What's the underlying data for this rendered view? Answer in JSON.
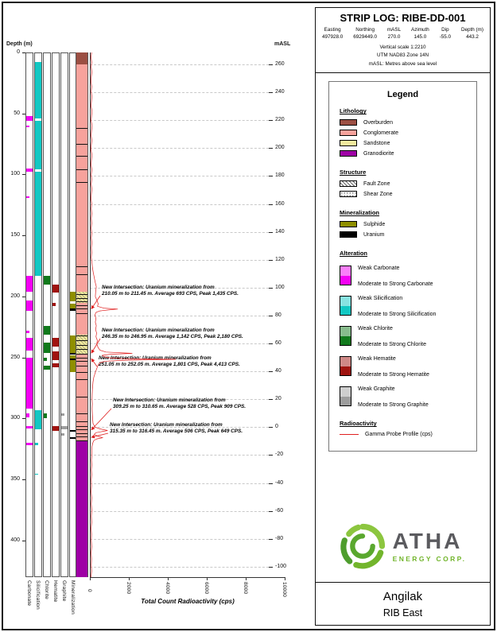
{
  "header": {
    "title": "STRIP LOG: RIBE-DD-001",
    "fields": [
      {
        "label": "Easting",
        "value": "497928.0"
      },
      {
        "label": "Northing",
        "value": "6929449.0"
      },
      {
        "label": "mASL",
        "value": "270.0"
      },
      {
        "label": "Azimuth",
        "value": "145.0"
      },
      {
        "label": "Dip",
        "value": "-55.0"
      },
      {
        "label": "Depth (m)",
        "value": "443.2"
      }
    ],
    "notes": [
      "Vertical scale 1:2210",
      "UTM NAD83 Zone 14N",
      "mASL: Metres above sea level"
    ]
  },
  "legend": {
    "title": "Legend",
    "sections": {
      "lithology": {
        "title": "Lithology",
        "items": [
          {
            "label": "Overburden",
            "color": "#9b4f43"
          },
          {
            "label": "Conglomerate",
            "color": "#f7a29c"
          },
          {
            "label": "Sandstone",
            "color": "#f3eb9e"
          },
          {
            "label": "Granodiorite",
            "color": "#9e00a5"
          }
        ]
      },
      "structure": {
        "title": "Structure",
        "items": [
          {
            "label": "Fault Zone",
            "pattern": "fault"
          },
          {
            "label": "Shear Zone",
            "pattern": "shear"
          }
        ]
      },
      "mineralization": {
        "title": "Mineralization",
        "items": [
          {
            "label": "Sulphide",
            "color": "#8f8f00"
          },
          {
            "label": "Uranium",
            "color": "#000000"
          }
        ]
      },
      "alteration": {
        "title": "Alteration",
        "pairs": [
          {
            "key": "carbonate",
            "weak_label": "Weak Carbonate",
            "strong_label": "Moderate to Strong Carbonate",
            "color": "#f400f4"
          },
          {
            "key": "silicification",
            "weak_label": "Weak Silicification",
            "strong_label": "Moderate to Strong Silicification",
            "color": "#12c8c3"
          },
          {
            "key": "chlorite",
            "weak_label": "Weak Chlorite",
            "strong_label": "Moderate to Strong Chlorite",
            "color": "#117a1c"
          },
          {
            "key": "hematite",
            "weak_label": "Weak Hematite",
            "strong_label": "Moderate to Strong Hematite",
            "color": "#a01410"
          },
          {
            "key": "graphite",
            "weak_label": "Weak Graphite",
            "strong_label": "Moderate to Strong Graphite",
            "color": "#9d9d9d"
          }
        ]
      },
      "radioactivity": {
        "title": "Radioactivity",
        "item_label": "Gamma Probe Profile (cps)",
        "color": "#e02020"
      }
    }
  },
  "logo": {
    "name": "ATHA",
    "subtitle": "ENERGY CORP."
  },
  "footer": {
    "project": "Angilak",
    "area": "RIB East"
  },
  "chart_data": {
    "type": "strip-log",
    "depth_axis": {
      "label": "Depth (m)",
      "min": 0,
      "max": 430,
      "ticks": [
        0,
        50,
        100,
        150,
        200,
        250,
        300,
        350,
        400
      ]
    },
    "masl_axis": {
      "label": "mASL",
      "collar_masl": 270.0,
      "ticks": [
        260,
        240,
        220,
        200,
        180,
        160,
        140,
        120,
        100,
        80,
        60,
        40,
        20,
        0,
        -20,
        -40,
        -60,
        -80,
        -100
      ]
    },
    "radioactivity_axis": {
      "label": "Total Count Radioactivity (cps)",
      "ticks": [
        0,
        2000,
        4000,
        6000,
        8000,
        10000
      ],
      "max": 10000
    },
    "track_labels": [
      "Carbonate",
      "Silicification",
      "Chlorite",
      "Hematite",
      "Graphite",
      "Mineralization"
    ],
    "alteration_tracks": {
      "carbonate": [
        {
          "from": 52,
          "to": 56,
          "intensity": "strong"
        },
        {
          "from": 60,
          "to": 61,
          "intensity": "weak"
        },
        {
          "from": 95,
          "to": 98,
          "intensity": "strong"
        },
        {
          "from": 118,
          "to": 119,
          "intensity": "weak"
        },
        {
          "from": 183,
          "to": 196,
          "intensity": "strong"
        },
        {
          "from": 203,
          "to": 212,
          "intensity": "strong"
        },
        {
          "from": 228,
          "to": 230,
          "intensity": "weak"
        },
        {
          "from": 234,
          "to": 244,
          "intensity": "strong"
        },
        {
          "from": 250,
          "to": 292,
          "intensity": "strong"
        },
        {
          "from": 296,
          "to": 299,
          "intensity": "weak"
        },
        {
          "from": 306,
          "to": 308,
          "intensity": "strong"
        },
        {
          "from": 320,
          "to": 322,
          "intensity": "strong"
        }
      ],
      "silicification": [
        {
          "from": 8,
          "to": 54,
          "intensity": "strong"
        },
        {
          "from": 56,
          "to": 96,
          "intensity": "strong"
        },
        {
          "from": 98,
          "to": 183,
          "intensity": "strong"
        },
        {
          "from": 293,
          "to": 309,
          "intensity": "strong"
        },
        {
          "from": 320,
          "to": 322,
          "intensity": "weak"
        },
        {
          "from": 345,
          "to": 346,
          "intensity": "weak"
        }
      ],
      "chlorite": [
        {
          "from": 183,
          "to": 190,
          "intensity": "strong"
        },
        {
          "from": 224,
          "to": 231,
          "intensity": "strong"
        },
        {
          "from": 238,
          "to": 246,
          "intensity": "strong"
        },
        {
          "from": 250,
          "to": 253,
          "intensity": "weak"
        },
        {
          "from": 257,
          "to": 260,
          "intensity": "strong"
        },
        {
          "from": 296,
          "to": 300,
          "intensity": "weak"
        }
      ],
      "hematite": [
        {
          "from": 190,
          "to": 197,
          "intensity": "strong"
        },
        {
          "from": 205,
          "to": 208,
          "intensity": "weak"
        },
        {
          "from": 234,
          "to": 241,
          "intensity": "strong"
        },
        {
          "from": 245,
          "to": 252,
          "intensity": "strong"
        },
        {
          "from": 255,
          "to": 258,
          "intensity": "strong"
        },
        {
          "from": 306,
          "to": 310,
          "intensity": "strong"
        }
      ],
      "graphite": [
        {
          "from": 296,
          "to": 298,
          "intensity": "weak"
        },
        {
          "from": 306,
          "to": 309,
          "intensity": "strong"
        },
        {
          "from": 312,
          "to": 314,
          "intensity": "weak"
        }
      ]
    },
    "mineralization_track": [
      {
        "from": 196,
        "to": 204,
        "mineral": "sulphide"
      },
      {
        "from": 206,
        "to": 212,
        "mineral": "sulphide"
      },
      {
        "from": 232,
        "to": 246,
        "mineral": "sulphide"
      },
      {
        "from": 248,
        "to": 262,
        "mineral": "sulphide"
      },
      {
        "from": 210.05,
        "to": 211.45,
        "mineral": "uranium"
      },
      {
        "from": 246.35,
        "to": 246.95,
        "mineral": "uranium"
      },
      {
        "from": 251.05,
        "to": 252.05,
        "mineral": "uranium"
      },
      {
        "from": 309.25,
        "to": 310.65,
        "mineral": "uranium"
      },
      {
        "from": 315.35,
        "to": 316.45,
        "mineral": "uranium"
      }
    ],
    "lithology_intervals": [
      {
        "from": 0,
        "to": 10,
        "unit": "Overburden"
      },
      {
        "from": 10,
        "to": 196,
        "unit": "Conglomerate"
      },
      {
        "from": 196,
        "to": 205,
        "unit": "Sandstone"
      },
      {
        "from": 205,
        "to": 231,
        "unit": "Conglomerate"
      },
      {
        "from": 231,
        "to": 247,
        "unit": "Sandstone"
      },
      {
        "from": 247,
        "to": 318,
        "unit": "Conglomerate"
      },
      {
        "from": 318,
        "to": 430,
        "unit": "Granodiorite"
      }
    ],
    "contact_marks_m": [
      62,
      75,
      85,
      96,
      106,
      175,
      182,
      198,
      201,
      204,
      207,
      210,
      214,
      232,
      236,
      240,
      243,
      247,
      250,
      253,
      257,
      262,
      268,
      282,
      296,
      302,
      306,
      309,
      312,
      315,
      318
    ],
    "gamma_profile": {
      "points": [
        [
          0,
          90
        ],
        [
          4,
          60
        ],
        [
          8,
          95
        ],
        [
          12,
          70
        ],
        [
          16,
          100
        ],
        [
          20,
          75
        ],
        [
          24,
          60
        ],
        [
          28,
          95
        ],
        [
          32,
          70
        ],
        [
          36,
          100
        ],
        [
          40,
          80
        ],
        [
          44,
          60
        ],
        [
          48,
          110
        ],
        [
          52,
          85
        ],
        [
          56,
          65
        ],
        [
          60,
          115
        ],
        [
          64,
          85
        ],
        [
          68,
          65
        ],
        [
          72,
          100
        ],
        [
          76,
          75
        ],
        [
          80,
          60
        ],
        [
          84,
          105
        ],
        [
          88,
          80
        ],
        [
          92,
          60
        ],
        [
          96,
          100
        ],
        [
          100,
          72
        ],
        [
          104,
          95
        ],
        [
          108,
          70
        ],
        [
          112,
          100
        ],
        [
          116,
          78
        ],
        [
          120,
          62
        ],
        [
          124,
          95
        ],
        [
          128,
          72
        ],
        [
          132,
          98
        ],
        [
          136,
          74
        ],
        [
          140,
          92
        ],
        [
          144,
          70
        ],
        [
          148,
          96
        ],
        [
          152,
          74
        ],
        [
          156,
          100
        ],
        [
          160,
          78
        ],
        [
          164,
          94
        ],
        [
          168,
          72
        ],
        [
          172,
          105
        ],
        [
          176,
          130
        ],
        [
          180,
          170
        ],
        [
          184,
          220
        ],
        [
          188,
          270
        ],
        [
          192,
          330
        ],
        [
          196,
          300
        ],
        [
          200,
          280
        ],
        [
          203,
          360
        ],
        [
          206,
          430
        ],
        [
          208,
          390
        ],
        [
          209.5,
          720
        ],
        [
          210.3,
          1435
        ],
        [
          211,
          950
        ],
        [
          211.8,
          520
        ],
        [
          213,
          320
        ],
        [
          215,
          260
        ],
        [
          218,
          310
        ],
        [
          221,
          280
        ],
        [
          224,
          330
        ],
        [
          227,
          295
        ],
        [
          230,
          345
        ],
        [
          233,
          315
        ],
        [
          236,
          385
        ],
        [
          239,
          355
        ],
        [
          242,
          430
        ],
        [
          244,
          520
        ],
        [
          245.5,
          820
        ],
        [
          246.6,
          2180
        ],
        [
          247.3,
          1050
        ],
        [
          248.2,
          640
        ],
        [
          249.2,
          720
        ],
        [
          250.2,
          950
        ],
        [
          250.9,
          1600
        ],
        [
          251.5,
          4413
        ],
        [
          252.2,
          1900
        ],
        [
          253,
          820
        ],
        [
          254.2,
          520
        ],
        [
          256,
          430
        ],
        [
          258,
          380
        ],
        [
          260,
          330
        ],
        [
          262,
          285
        ],
        [
          264,
          245
        ],
        [
          266,
          205
        ],
        [
          268,
          185
        ],
        [
          270,
          165
        ],
        [
          273,
          145
        ],
        [
          276,
          132
        ],
        [
          280,
          120
        ],
        [
          284,
          112
        ],
        [
          288,
          128
        ],
        [
          292,
          116
        ],
        [
          296,
          126
        ],
        [
          300,
          142
        ],
        [
          304,
          165
        ],
        [
          307,
          260
        ],
        [
          308.5,
          520
        ],
        [
          309.8,
          909
        ],
        [
          310.7,
          620
        ],
        [
          311.6,
          310
        ],
        [
          313,
          225
        ],
        [
          314.5,
          410
        ],
        [
          315.8,
          649
        ],
        [
          316.7,
          360
        ],
        [
          318,
          205
        ],
        [
          320,
          150
        ],
        [
          323,
          112
        ],
        [
          326,
          92
        ],
        [
          330,
          102
        ],
        [
          334,
          82
        ],
        [
          338,
          96
        ],
        [
          342,
          76
        ],
        [
          346,
          92
        ],
        [
          350,
          72
        ],
        [
          355,
          86
        ],
        [
          360,
          66
        ],
        [
          365,
          92
        ],
        [
          370,
          72
        ],
        [
          375,
          96
        ],
        [
          380,
          76
        ],
        [
          385,
          92
        ],
        [
          390,
          66
        ],
        [
          395,
          86
        ],
        [
          400,
          72
        ],
        [
          405,
          92
        ],
        [
          410,
          66
        ],
        [
          415,
          86
        ],
        [
          420,
          72
        ],
        [
          425,
          90
        ],
        [
          430,
          62
        ]
      ]
    },
    "annotations": [
      {
        "text": "New Intersection: Uranium mineralization from 210.05 m to 211.45 m. Average 693 CPS, Peak 1,435 CPS.",
        "from_m": 210.05,
        "to_m": 211.45,
        "avg_cps": 693,
        "peak_cps": 1435
      },
      {
        "text": "New Intersection: Uranium mineralization from 246.35 m to 246.95 m. Average 1,142 CPS, Peak 2,180 CPS.",
        "from_m": 246.35,
        "to_m": 246.95,
        "avg_cps": 1142,
        "peak_cps": 2180
      },
      {
        "text": "New Intersection: Uranium mineralization from 251.05 m to 252.05 m. Average 1,801 CPS, Peak 4,413 CPS.",
        "from_m": 251.05,
        "to_m": 252.05,
        "avg_cps": 1801,
        "peak_cps": 4413
      },
      {
        "text": "New Intersection: Uranium mineralization from 309.25 m to 310.65 m. Average 528 CPS, Peak 909 CPS.",
        "from_m": 309.25,
        "to_m": 310.65,
        "avg_cps": 528,
        "peak_cps": 909
      },
      {
        "text": "New Intersection: Uranium mineralization from 315.35 m to 316.45 m. Average 506 CPS, Peak 649 CPS.",
        "from_m": 315.35,
        "to_m": 316.45,
        "avg_cps": 506,
        "peak_cps": 649
      }
    ]
  }
}
